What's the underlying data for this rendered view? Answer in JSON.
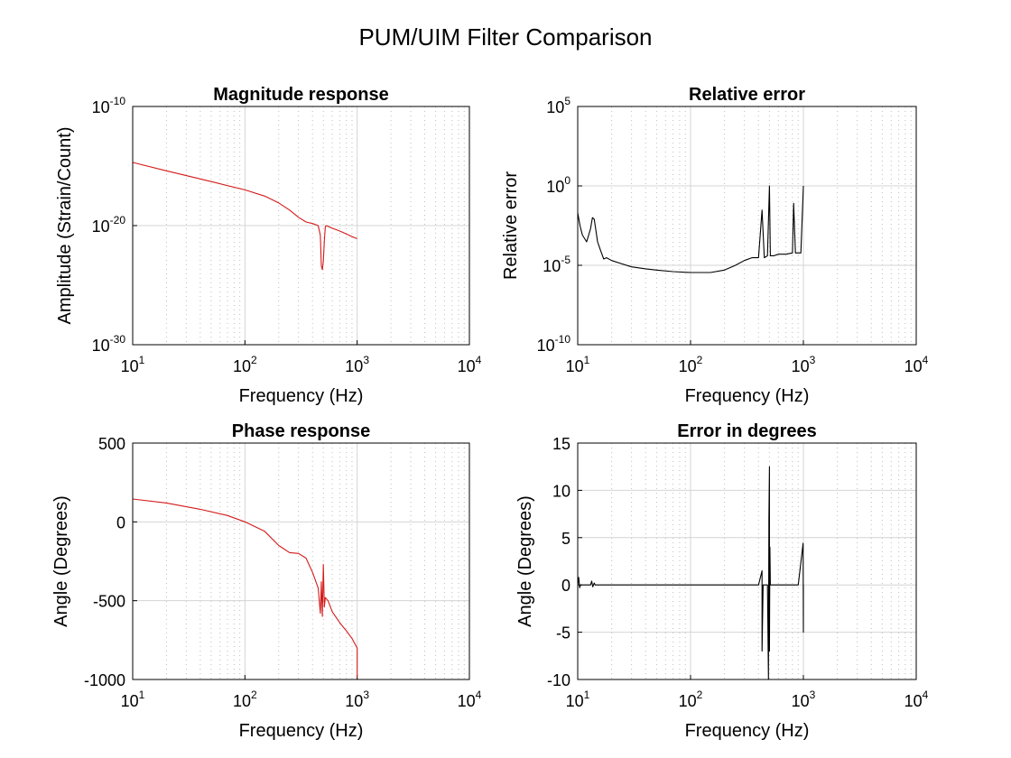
{
  "figure": {
    "title": "PUM/UIM Filter Comparison"
  },
  "colors": {
    "reference": "#d41a1a",
    "error": "#000000",
    "grid": "#d4d4d4",
    "axes": "#000000"
  },
  "chart_data": [
    {
      "id": "magnitude",
      "type": "line",
      "title": "Magnitude response",
      "xlabel": "Frequency (Hz)",
      "ylabel": "Amplitude (Strain/Count)",
      "xscale": "log",
      "yscale": "log",
      "xlim": [
        10,
        10000
      ],
      "ylim": [
        1e-30,
        1e-10
      ],
      "xticks": [
        {
          "base": "10",
          "exp": "1"
        },
        {
          "base": "10",
          "exp": "2"
        },
        {
          "base": "10",
          "exp": "3"
        },
        {
          "base": "10",
          "exp": "4"
        }
      ],
      "yticks": [
        {
          "base": "10",
          "exp": "-30"
        },
        {
          "base": "10",
          "exp": "-20"
        },
        {
          "base": "10",
          "exp": "-10"
        }
      ],
      "grid": true,
      "series": [
        {
          "color": "#d41a1a",
          "x": [
            10,
            20,
            50,
            100,
            150,
            200,
            250,
            300,
            350,
            400,
            450,
            470,
            480,
            490,
            500,
            510,
            520,
            530,
            600,
            700,
            800,
            900,
            1000
          ],
          "y": [
            2e-15,
            4e-16,
            5e-17,
            1e-17,
            3e-18,
            8e-19,
            2e-19,
            5e-20,
            2e-20,
            1.5e-20,
            1e-20,
            1.5e-21,
            4e-24,
            2e-24,
            1e-23,
            5e-22,
            8e-21,
            1e-20,
            6e-21,
            3.5e-21,
            2e-21,
            1.2e-21,
            8e-22
          ]
        }
      ]
    },
    {
      "id": "relative-error",
      "type": "line",
      "title": "Relative error",
      "xlabel": "Frequency (Hz)",
      "ylabel": "Relative error",
      "xscale": "log",
      "yscale": "log",
      "xlim": [
        10,
        10000
      ],
      "ylim": [
        1e-10,
        100000.0
      ],
      "xticks": [
        {
          "base": "10",
          "exp": "1"
        },
        {
          "base": "10",
          "exp": "2"
        },
        {
          "base": "10",
          "exp": "3"
        },
        {
          "base": "10",
          "exp": "4"
        }
      ],
      "yticks": [
        {
          "base": "10",
          "exp": "-10"
        },
        {
          "base": "10",
          "exp": "-5"
        },
        {
          "base": "10",
          "exp": "0"
        },
        {
          "base": "10",
          "exp": "5"
        }
      ],
      "grid": true,
      "series": [
        {
          "color": "#000000",
          "x": [
            10,
            10.5,
            11,
            12,
            13,
            13.5,
            14,
            14.5,
            15,
            16,
            17,
            18,
            20,
            25,
            30,
            40,
            50,
            70,
            100,
            150,
            200,
            250,
            300,
            350,
            400,
            430,
            450,
            480,
            500,
            510,
            550,
            600,
            700,
            800,
            820,
            850,
            900,
            950,
            1000
          ],
          "y": [
            0.02,
            0.003,
            0.0008,
            0.0003,
            0.002,
            0.01,
            0.008,
            0.0015,
            0.0003,
            8e-05,
            2.5e-05,
            3e-05,
            2e-05,
            1.2e-05,
            8e-06,
            6e-06,
            5e-06,
            4e-06,
            3.5e-06,
            3.5e-06,
            5e-06,
            1e-05,
            2e-05,
            3e-05,
            3e-05,
            0.03,
            3e-05,
            4e-05,
            1.0,
            4e-05,
            4e-05,
            5e-05,
            5e-05,
            6e-05,
            0.08,
            6e-05,
            6e-05,
            6e-05,
            1.0
          ]
        }
      ]
    },
    {
      "id": "phase",
      "type": "line",
      "title": "Phase response",
      "xlabel": "Frequency (Hz)",
      "ylabel": "Angle (Degrees)",
      "xscale": "log",
      "yscale": "linear",
      "xlim": [
        10,
        10000
      ],
      "ylim": [
        -1000,
        500
      ],
      "xticks": [
        {
          "base": "10",
          "exp": "1"
        },
        {
          "base": "10",
          "exp": "2"
        },
        {
          "base": "10",
          "exp": "3"
        },
        {
          "base": "10",
          "exp": "4"
        }
      ],
      "yticks": [
        {
          "label": "500",
          "value": 500
        },
        {
          "label": "0",
          "value": 0
        },
        {
          "label": "-500",
          "value": -500
        },
        {
          "label": "-1000",
          "value": -1000
        }
      ],
      "grid": true,
      "series": [
        {
          "color": "#d41a1a",
          "x": [
            10,
            20,
            40,
            70,
            100,
            150,
            200,
            250,
            300,
            350,
            400,
            450,
            470,
            480,
            490,
            500,
            510,
            520,
            550,
            600,
            700,
            800,
            900,
            1000,
            1000
          ],
          "y": [
            145,
            120,
            80,
            40,
            0,
            -60,
            -150,
            -195,
            -200,
            -230,
            -320,
            -420,
            -580,
            -380,
            -600,
            -270,
            -540,
            -480,
            -500,
            -570,
            -640,
            -690,
            -740,
            -800,
            -990
          ]
        }
      ]
    },
    {
      "id": "error-degrees",
      "type": "line",
      "title": "Error in degrees",
      "xlabel": "Frequency (Hz)",
      "ylabel": "Angle (Degrees)",
      "xscale": "log",
      "yscale": "linear",
      "xlim": [
        10,
        10000
      ],
      "ylim": [
        -10,
        15
      ],
      "xticks": [
        {
          "base": "10",
          "exp": "1"
        },
        {
          "base": "10",
          "exp": "2"
        },
        {
          "base": "10",
          "exp": "3"
        },
        {
          "base": "10",
          "exp": "4"
        }
      ],
      "yticks": [
        {
          "label": "15",
          "value": 15
        },
        {
          "label": "10",
          "value": 10
        },
        {
          "label": "5",
          "value": 5
        },
        {
          "label": "0",
          "value": 0
        },
        {
          "label": "-5",
          "value": -5
        },
        {
          "label": "-10",
          "value": -10
        }
      ],
      "grid": true,
      "series": [
        {
          "color": "#000000",
          "x": [
            10,
            10.2,
            10.4,
            10.6,
            13,
            13.3,
            13.6,
            14,
            14.3,
            20,
            100,
            400,
            430,
            430,
            440,
            480,
            490,
            495,
            500,
            500,
            505,
            510,
            515,
            520,
            600,
            900,
            995,
            1000,
            1000,
            1005
          ],
          "y": [
            0,
            0.8,
            -0.3,
            0,
            0,
            0.4,
            -0.2,
            0.2,
            0,
            0,
            0,
            0,
            1.5,
            -7,
            0,
            0,
            -10,
            7,
            12.5,
            -7,
            4,
            0,
            0,
            0,
            0,
            0,
            4.4,
            -5,
            0,
            0
          ]
        }
      ]
    }
  ]
}
